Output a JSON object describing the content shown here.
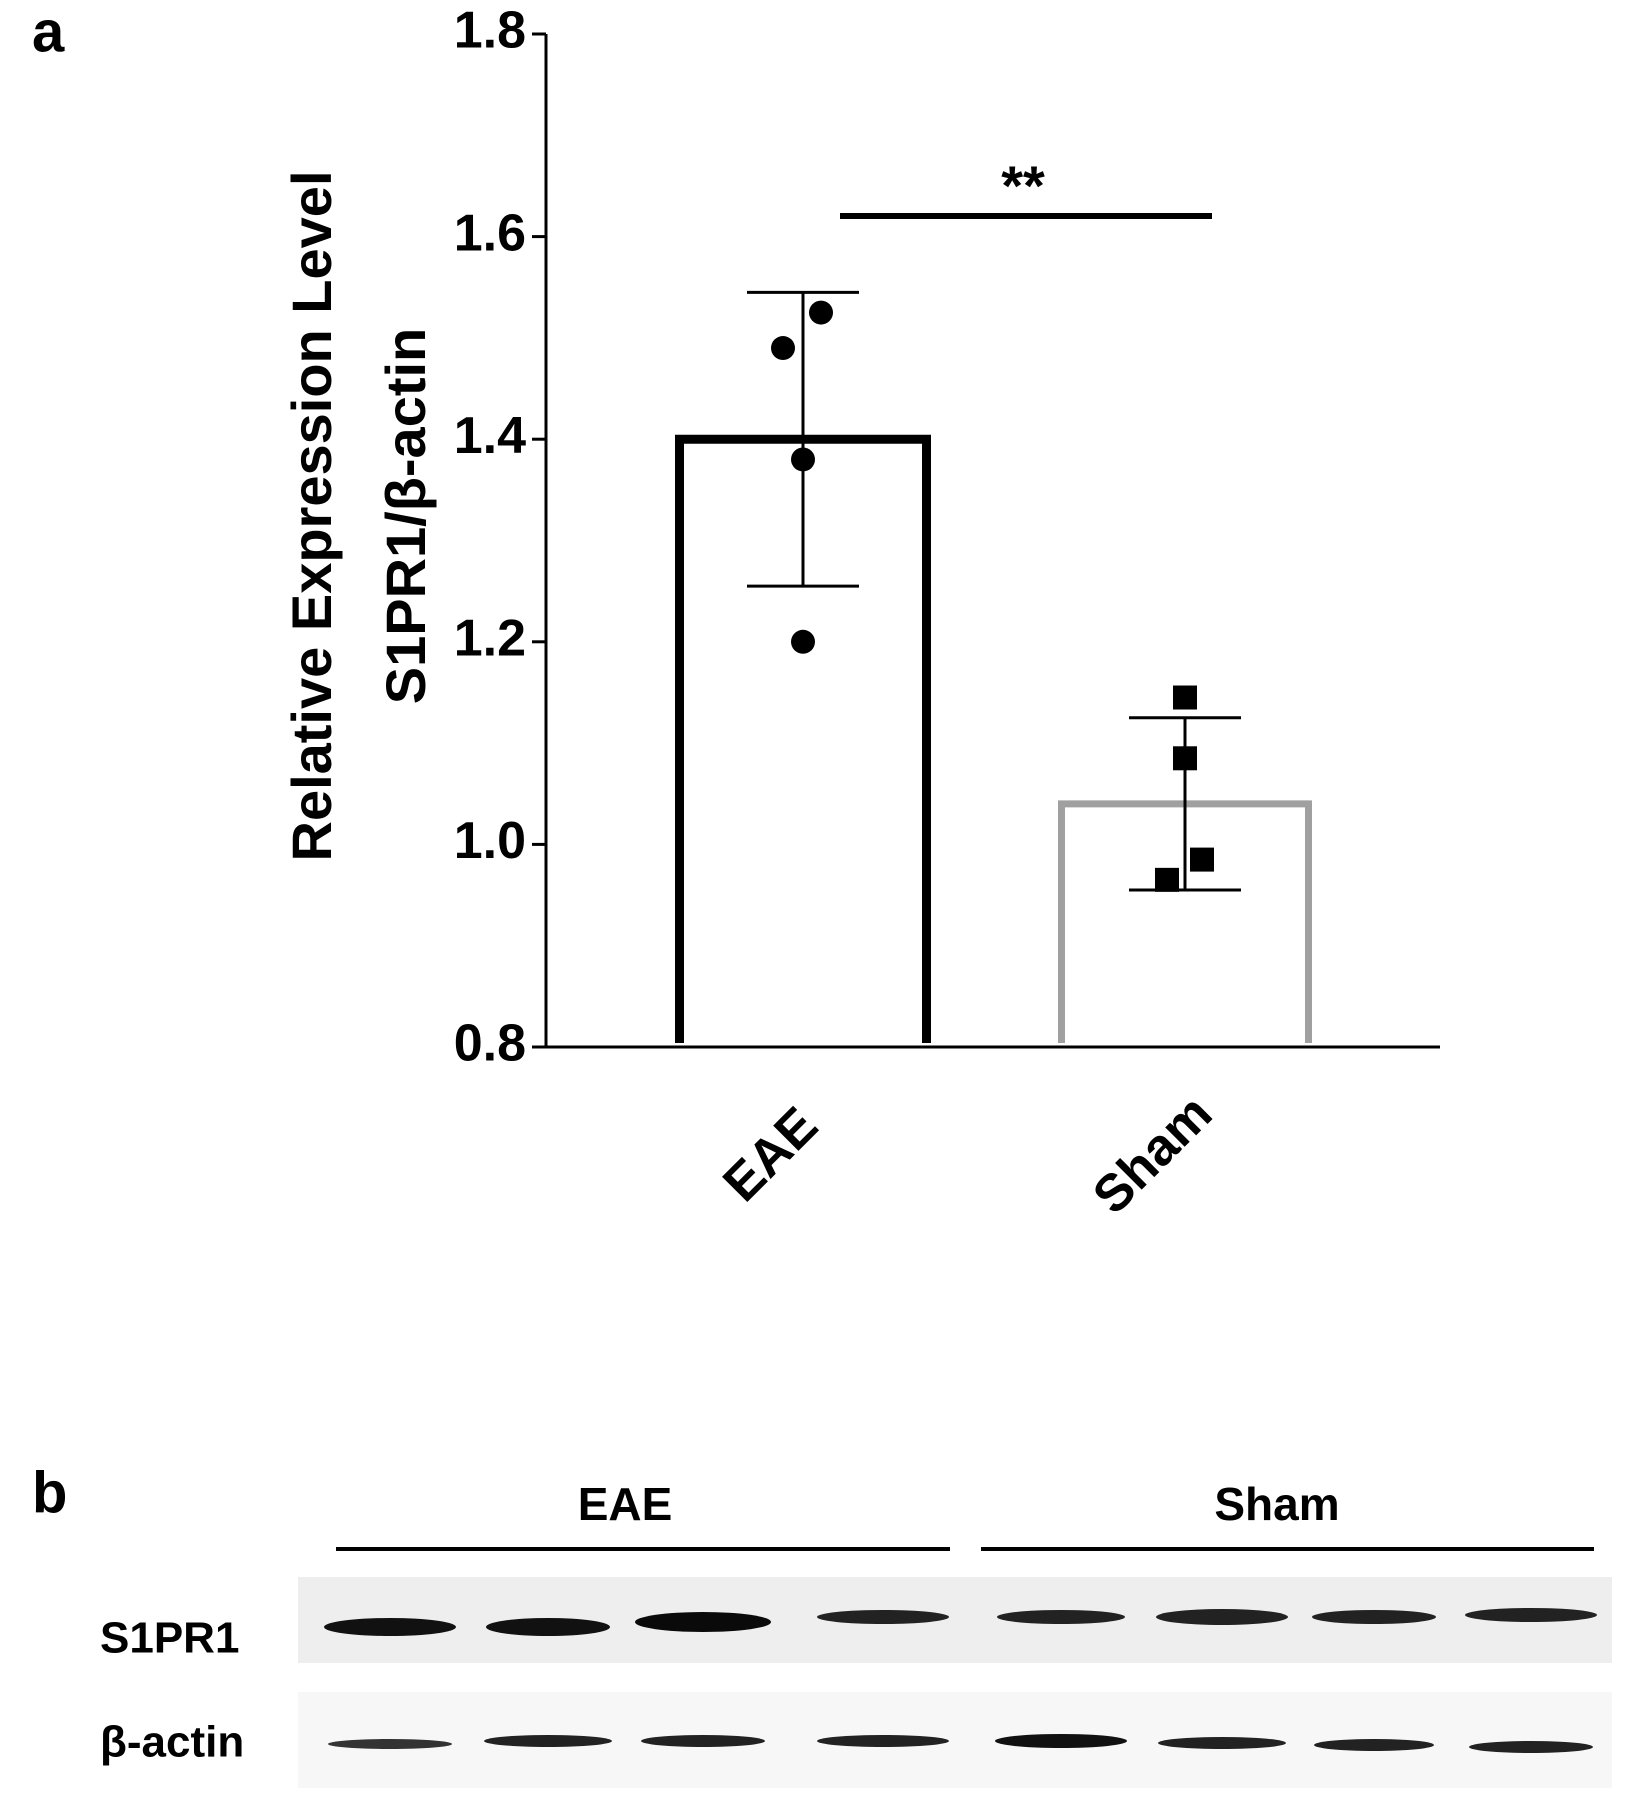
{
  "chart_data": {
    "type": "bar",
    "panel": "a",
    "ylabel": [
      "Relative Expression Level",
      "S1PR1/β-actin"
    ],
    "categories": [
      "EAE",
      "Sham"
    ],
    "values": [
      1.4,
      1.04
    ],
    "errors": [
      0.145,
      0.085
    ],
    "colors": [
      "#000000",
      "#a0a0a0"
    ],
    "markers": [
      "circle",
      "square"
    ],
    "points": [
      [
        1.525,
        1.49,
        1.38,
        1.2
      ],
      [
        1.145,
        1.085,
        0.985,
        0.965
      ]
    ],
    "ylim": [
      0.8,
      1.8
    ],
    "yticks": [
      0.8,
      {
        "value": 1,
        "label": "1.0"
      },
      1.2,
      1.4,
      1.6,
      1.8
    ],
    "annotation": "**"
  },
  "blot": {
    "panel": "b",
    "groups": [
      "EAE",
      "Sham"
    ],
    "rows": [
      "S1PR1",
      "β-actin"
    ]
  }
}
